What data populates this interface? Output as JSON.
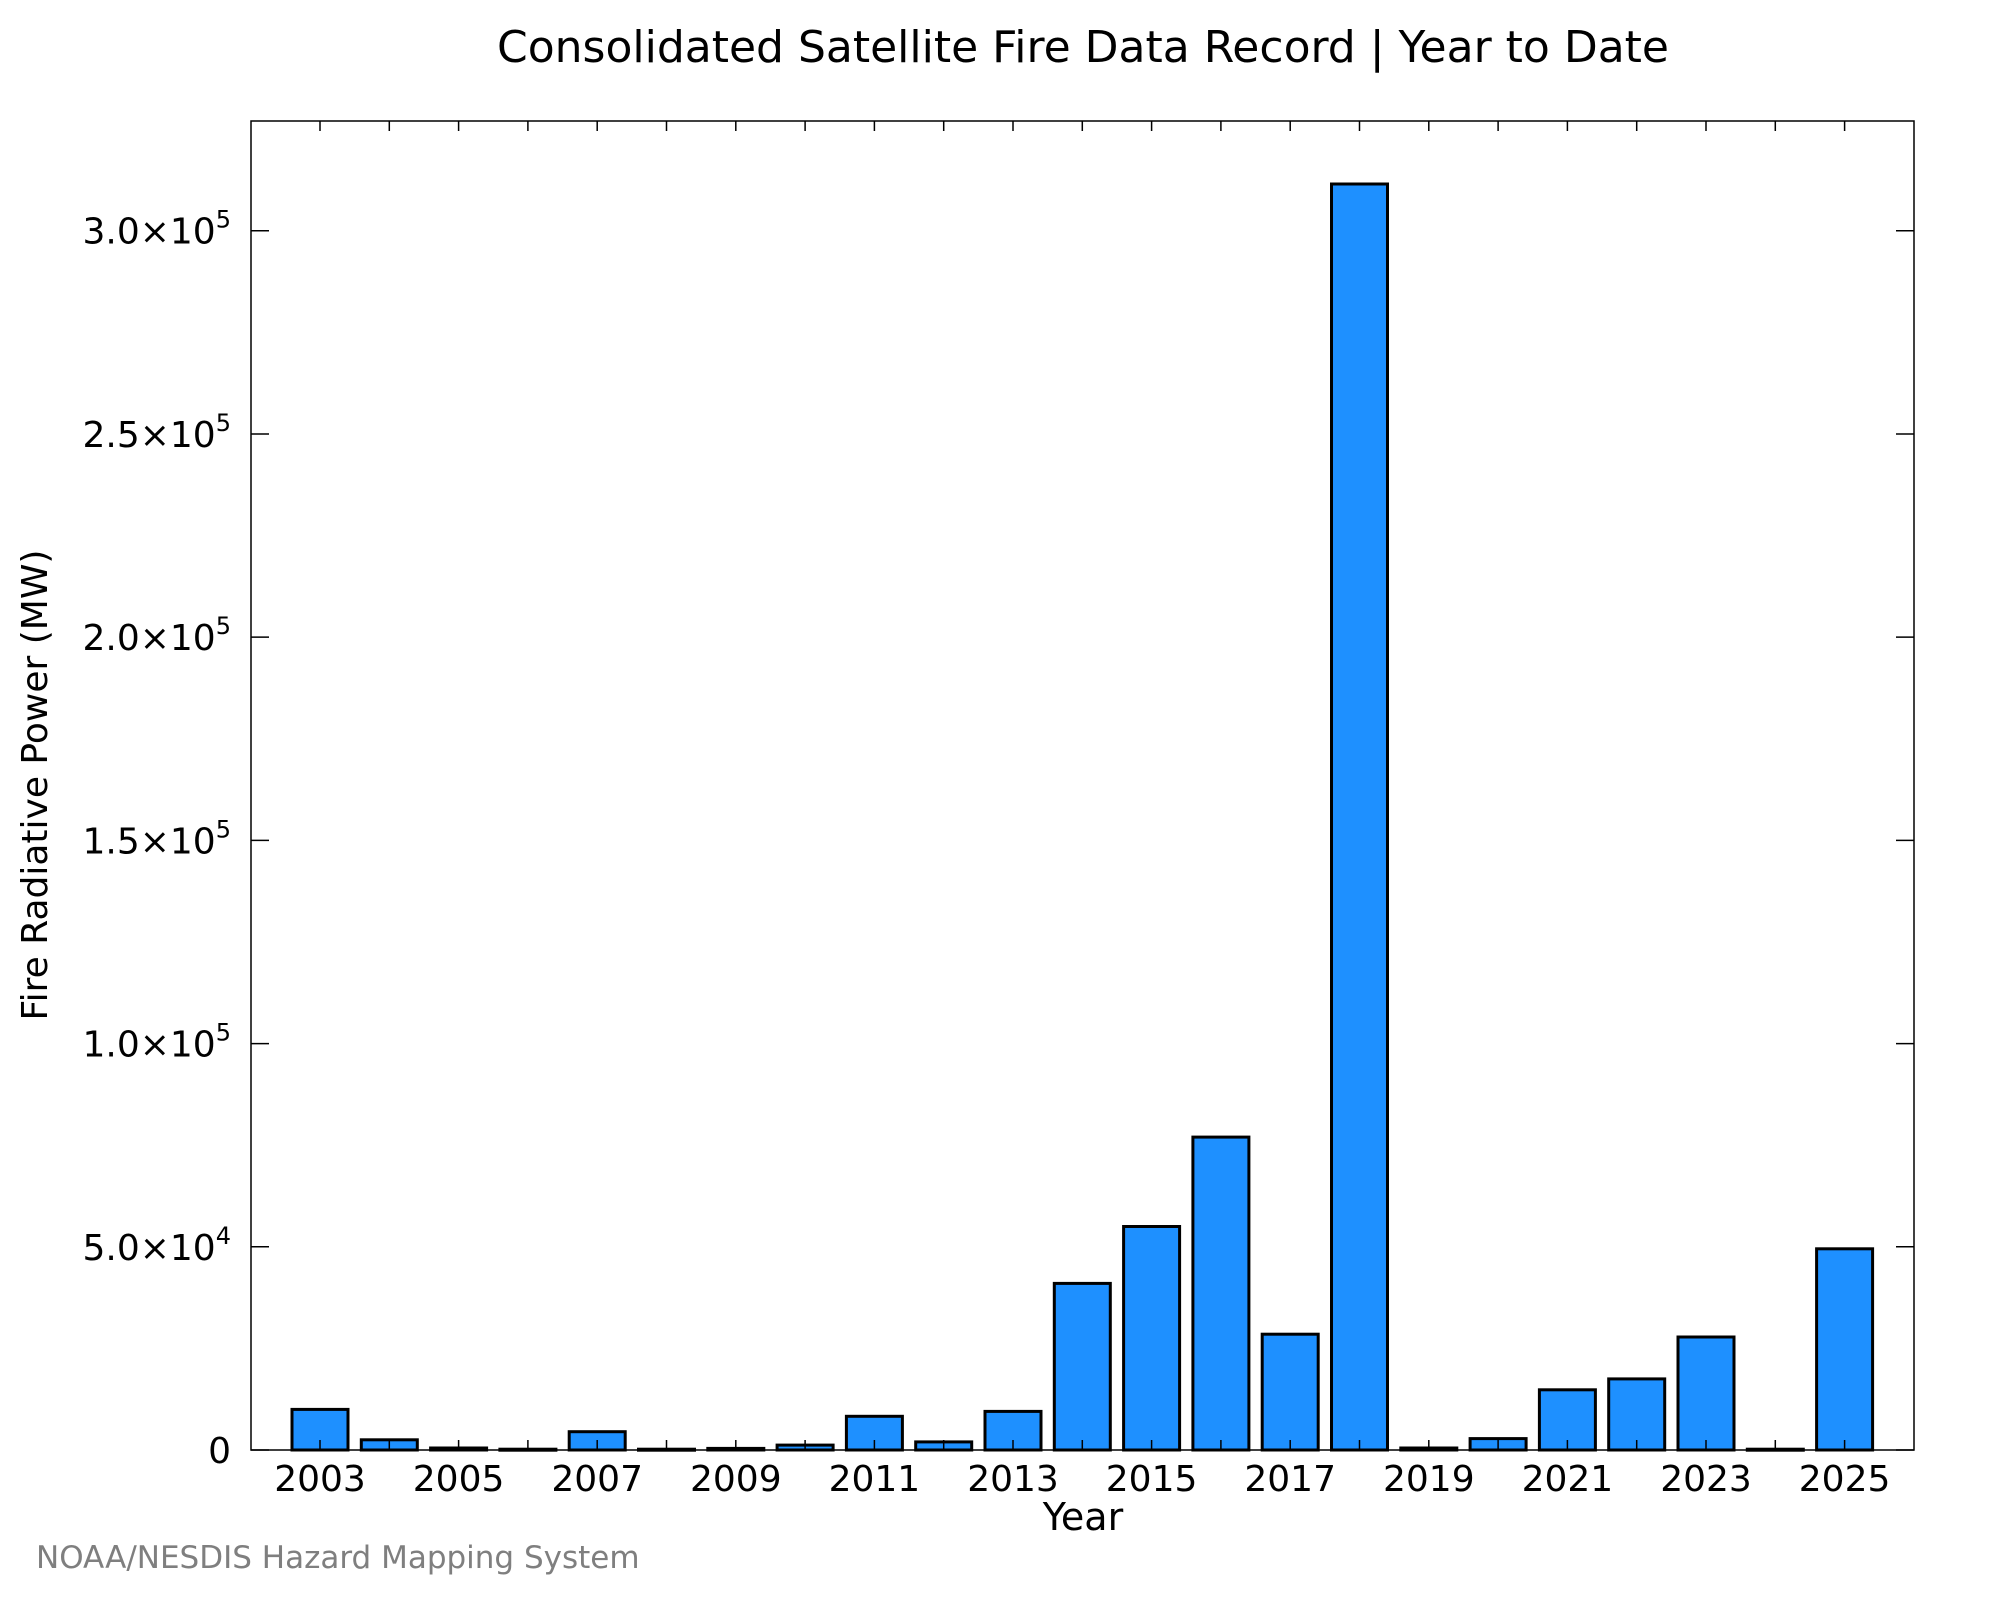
{
  "chart_data": {
    "type": "bar",
    "title": "Consolidated Satellite Fire Data Record | Year to Date",
    "xlabel": "Year",
    "ylabel": "Fire Radiative Power (MW)",
    "categories": [
      2003,
      2004,
      2005,
      2006,
      2007,
      2008,
      2009,
      2010,
      2011,
      2012,
      2013,
      2014,
      2015,
      2016,
      2017,
      2018,
      2019,
      2020,
      2021,
      2022,
      2023,
      2024,
      2025
    ],
    "values": [
      10000,
      2500,
      500,
      200,
      4500,
      200,
      400,
      1200,
      8300,
      2000,
      9500,
      41000,
      55000,
      77000,
      28500,
      311500,
      500,
      2800,
      14800,
      17500,
      27800,
      200,
      49500
    ],
    "ylim": [
      0,
      327000
    ],
    "xticks": [
      "2003",
      "2005",
      "2007",
      "2009",
      "2011",
      "2013",
      "2015",
      "2017",
      "2019",
      "2021",
      "2023",
      "2025"
    ],
    "yticks": [
      {
        "value": 0,
        "mantissa": "0",
        "exp": ""
      },
      {
        "value": 50000,
        "mantissa": "5.0×10",
        "exp": "4"
      },
      {
        "value": 100000,
        "mantissa": "1.0×10",
        "exp": "5"
      },
      {
        "value": 150000,
        "mantissa": "1.5×10",
        "exp": "5"
      },
      {
        "value": 200000,
        "mantissa": "2.0×10",
        "exp": "5"
      },
      {
        "value": 250000,
        "mantissa": "2.5×10",
        "exp": "5"
      },
      {
        "value": 300000,
        "mantissa": "3.0×10",
        "exp": "5"
      }
    ],
    "bar_color": "#1e90ff",
    "edge_color": "#000000",
    "grid": false
  },
  "credit": "NOAA/NESDIS Hazard Mapping System"
}
